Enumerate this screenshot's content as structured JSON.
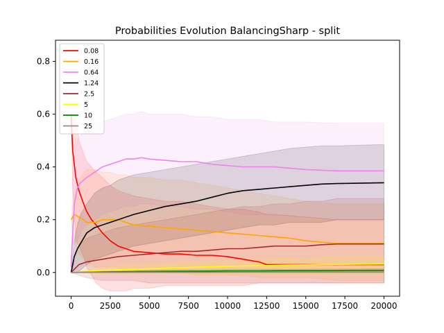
{
  "chart_data": {
    "type": "line",
    "title": "Probabilities Evolution BalancingSharp  - split",
    "xlabel": "",
    "ylabel": "",
    "xlim": [
      -1000,
      21000
    ],
    "ylim": [
      -0.09,
      0.88
    ],
    "x_ticks": [
      0,
      2500,
      5000,
      7500,
      10000,
      12500,
      15000,
      17500,
      20000
    ],
    "x_tick_labels": [
      "0",
      "2500",
      "5000",
      "7500",
      "10000",
      "12500",
      "15000",
      "17500",
      "20000"
    ],
    "y_ticks": [
      0.0,
      0.2,
      0.4,
      0.6,
      0.8
    ],
    "y_tick_labels": [
      "0.0",
      "0.2",
      "0.4",
      "0.6",
      "0.8"
    ],
    "grid": false,
    "legend_position": "top-left",
    "series": [
      {
        "name": "0.08",
        "color": "#ff0000",
        "x": [
          0,
          100,
          300,
          500,
          800,
          1000,
          1300,
          1600,
          2000,
          2500,
          3000,
          3500,
          4000,
          5000,
          6000,
          7000,
          8000,
          9000,
          10000,
          11000,
          12000,
          12500,
          13000,
          15000,
          17000,
          20000
        ],
        "values": [
          0.6,
          0.46,
          0.36,
          0.31,
          0.26,
          0.23,
          0.2,
          0.18,
          0.15,
          0.12,
          0.1,
          0.09,
          0.08,
          0.075,
          0.07,
          0.07,
          0.065,
          0.065,
          0.06,
          0.05,
          0.04,
          0.03,
          0.03,
          0.03,
          0.03,
          0.03
        ],
        "band_upper": [
          0.6,
          0.6,
          0.6,
          0.5,
          0.45,
          0.42,
          0.4,
          0.38,
          0.36,
          0.33,
          0.31,
          0.3,
          0.29,
          0.28,
          0.27,
          0.27,
          0.26,
          0.25,
          0.24,
          0.24,
          0.23,
          0.22,
          0.22,
          0.21,
          0.2,
          0.2
        ],
        "band_lower": [
          0.6,
          0.32,
          0.12,
          0.1,
          0.06,
          0.02,
          -0.01,
          -0.04,
          -0.06,
          -0.07,
          -0.07,
          -0.07,
          -0.06,
          -0.06,
          -0.05,
          -0.05,
          -0.05,
          -0.05,
          -0.05,
          -0.05,
          -0.04,
          -0.04,
          -0.04,
          -0.04,
          -0.04,
          -0.04
        ]
      },
      {
        "name": "0.16",
        "color": "#ffa500",
        "x": [
          0,
          200,
          500,
          800,
          1000,
          1300,
          1600,
          2000,
          2500,
          3000,
          3500,
          4000,
          5000,
          6000,
          7000,
          8000,
          9000,
          10000,
          11000,
          12000,
          13000,
          14000,
          15000,
          17000,
          18000,
          20000
        ],
        "values": [
          0.2,
          0.22,
          0.21,
          0.2,
          0.19,
          0.19,
          0.19,
          0.2,
          0.2,
          0.2,
          0.19,
          0.18,
          0.175,
          0.17,
          0.165,
          0.16,
          0.155,
          0.15,
          0.145,
          0.14,
          0.135,
          0.13,
          0.12,
          0.11,
          0.11,
          0.11
        ],
        "band_upper": [
          0.2,
          0.3,
          0.35,
          0.38,
          0.39,
          0.39,
          0.39,
          0.38,
          0.38,
          0.37,
          0.37,
          0.36,
          0.36,
          0.35,
          0.35,
          0.34,
          0.33,
          0.32,
          0.31,
          0.3,
          0.29,
          0.28,
          0.27,
          0.26,
          0.26,
          0.26
        ],
        "band_lower": [
          0.2,
          0.12,
          0.07,
          0.05,
          0.04,
          0.03,
          0.02,
          0.02,
          0.02,
          0.02,
          0.01,
          0.01,
          0.0,
          0.0,
          0.0,
          -0.01,
          -0.01,
          -0.01,
          -0.01,
          -0.02,
          -0.02,
          -0.02,
          -0.02,
          -0.03,
          -0.03,
          -0.03
        ]
      },
      {
        "name": "0.64",
        "color": "#ee82ee",
        "x": [
          0,
          100,
          200,
          400,
          600,
          800,
          1000,
          1500,
          2000,
          2500,
          3000,
          3500,
          4000,
          4500,
          5000,
          6000,
          7000,
          8000,
          9000,
          10000,
          11000,
          12000,
          13000,
          15000,
          17000,
          20000
        ],
        "values": [
          0.02,
          0.15,
          0.26,
          0.32,
          0.34,
          0.35,
          0.36,
          0.38,
          0.4,
          0.41,
          0.42,
          0.43,
          0.43,
          0.435,
          0.43,
          0.425,
          0.42,
          0.42,
          0.41,
          0.405,
          0.4,
          0.4,
          0.4,
          0.39,
          0.385,
          0.385
        ],
        "band_upper": [
          0.02,
          0.35,
          0.45,
          0.5,
          0.52,
          0.53,
          0.54,
          0.56,
          0.57,
          0.58,
          0.59,
          0.6,
          0.6,
          0.61,
          0.6,
          0.6,
          0.6,
          0.59,
          0.59,
          0.58,
          0.58,
          0.58,
          0.57,
          0.57,
          0.565,
          0.565
        ],
        "band_lower": [
          0.02,
          0.0,
          0.06,
          0.12,
          0.15,
          0.17,
          0.18,
          0.2,
          0.22,
          0.23,
          0.24,
          0.25,
          0.25,
          0.26,
          0.26,
          0.25,
          0.25,
          0.24,
          0.24,
          0.23,
          0.22,
          0.22,
          0.22,
          0.21,
          0.2,
          0.2
        ]
      },
      {
        "name": "1.24",
        "color": "#000000",
        "x": [
          0,
          200,
          400,
          600,
          800,
          1000,
          1500,
          2000,
          2500,
          3000,
          3500,
          4000,
          5000,
          6000,
          7000,
          8000,
          9000,
          10000,
          11000,
          12000,
          13000,
          14000,
          15000,
          16000,
          17000,
          20000
        ],
        "values": [
          0.0,
          0.06,
          0.09,
          0.11,
          0.13,
          0.15,
          0.17,
          0.18,
          0.19,
          0.2,
          0.21,
          0.22,
          0.235,
          0.25,
          0.26,
          0.27,
          0.285,
          0.3,
          0.31,
          0.315,
          0.32,
          0.325,
          0.33,
          0.335,
          0.337,
          0.34
        ],
        "band_upper": [
          0.0,
          0.12,
          0.18,
          0.22,
          0.24,
          0.26,
          0.3,
          0.32,
          0.33,
          0.35,
          0.36,
          0.37,
          0.38,
          0.39,
          0.4,
          0.41,
          0.42,
          0.43,
          0.44,
          0.45,
          0.46,
          0.47,
          0.475,
          0.48,
          0.48,
          0.485
        ],
        "band_lower": [
          0.0,
          0.0,
          0.0,
          0.01,
          0.02,
          0.03,
          0.05,
          0.06,
          0.07,
          0.08,
          0.09,
          0.1,
          0.11,
          0.12,
          0.13,
          0.14,
          0.15,
          0.16,
          0.17,
          0.18,
          0.18,
          0.19,
          0.19,
          0.19,
          0.2,
          0.2
        ]
      },
      {
        "name": "2.5",
        "color": "#a52a2a",
        "x": [
          0,
          500,
          1000,
          2000,
          3000,
          4000,
          5000,
          6000,
          7000,
          8000,
          9000,
          10000,
          11000,
          12000,
          13000,
          14000,
          15000,
          16000,
          17000,
          18000,
          20000
        ],
        "values": [
          0.0,
          0.03,
          0.04,
          0.05,
          0.06,
          0.065,
          0.07,
          0.075,
          0.08,
          0.08,
          0.085,
          0.09,
          0.09,
          0.095,
          0.1,
          0.1,
          0.1,
          0.105,
          0.108,
          0.108,
          0.108
        ],
        "band_upper": [
          0.0,
          0.1,
          0.13,
          0.15,
          0.17,
          0.18,
          0.19,
          0.2,
          0.21,
          0.22,
          0.23,
          0.24,
          0.25,
          0.25,
          0.26,
          0.26,
          0.27,
          0.27,
          0.28,
          0.28,
          0.28
        ],
        "band_lower": [
          0.0,
          -0.01,
          -0.02,
          -0.03,
          -0.03,
          -0.03,
          -0.04,
          -0.04,
          -0.04,
          -0.04,
          -0.04,
          -0.04,
          -0.04,
          -0.04,
          -0.04,
          -0.04,
          -0.04,
          -0.04,
          -0.04,
          -0.04,
          -0.04
        ]
      },
      {
        "name": "5",
        "color": "#ffff00",
        "x": [
          0,
          2000,
          4000,
          6000,
          8000,
          10000,
          12000,
          14000,
          16000,
          18000,
          20000
        ],
        "values": [
          0.0,
          0.008,
          0.012,
          0.016,
          0.02,
          0.023,
          0.026,
          0.028,
          0.03,
          0.031,
          0.032
        ],
        "band_upper": [
          0.0,
          0.02,
          0.03,
          0.035,
          0.04,
          0.045,
          0.05,
          0.055,
          0.058,
          0.06,
          0.06
        ],
        "band_lower": [
          0.0,
          -0.005,
          -0.005,
          -0.005,
          -0.005,
          -0.005,
          -0.005,
          -0.005,
          -0.005,
          -0.005,
          -0.005
        ]
      },
      {
        "name": "10",
        "color": "#008000",
        "x": [
          0,
          2000,
          4000,
          6000,
          8000,
          10000,
          12000,
          14000,
          16000,
          18000,
          20000
        ],
        "values": [
          0.0,
          0.002,
          0.003,
          0.004,
          0.005,
          0.006,
          0.006,
          0.007,
          0.007,
          0.008,
          0.008
        ],
        "band_upper": [
          0.0,
          0.005,
          0.007,
          0.009,
          0.01,
          0.011,
          0.012,
          0.012,
          0.013,
          0.013,
          0.014
        ],
        "band_lower": [
          0.0,
          -0.001,
          -0.001,
          -0.001,
          -0.001,
          -0.001,
          -0.001,
          -0.001,
          -0.001,
          -0.001,
          -0.001
        ]
      },
      {
        "name": "25",
        "color": "#a0877e",
        "x": [
          0,
          4000,
          8000,
          12000,
          16000,
          20000
        ],
        "values": [
          0.0,
          0.001,
          0.001,
          0.002,
          0.002,
          0.002
        ],
        "band_upper": [
          0.0,
          0.003,
          0.004,
          0.005,
          0.005,
          0.006
        ],
        "band_lower": [
          0.0,
          0.0,
          0.0,
          0.0,
          0.0,
          0.0
        ]
      }
    ]
  }
}
